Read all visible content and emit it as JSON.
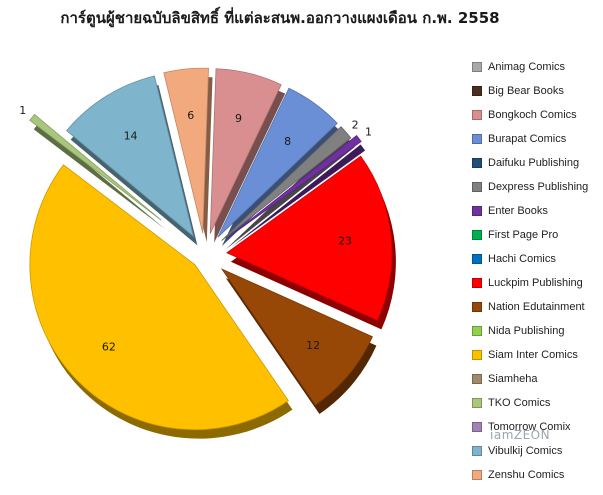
{
  "chart_data": {
    "type": "pie",
    "title": "การ์ตูนผู้ชายฉบับลิขสิทธิ์ ที่แต่ละสนพ.ออกวางแผงเดือน ก.พ. 2558",
    "categories": [
      "Animag Comics",
      "Big Bear Books",
      "Bongkoch Comics",
      "Burapat Comics",
      "Daifuku Publishing",
      "Dexpress Publishing",
      "Enter Books",
      "First Page Pro",
      "Hachi Comics",
      "Luckpim Publishing",
      "Nation Edutainment",
      "Nida Publishing",
      "Siam Inter Comics",
      "Siamheha",
      "TKO Comics",
      "Tomorrow Comix",
      "Vibulkij Comics",
      "Zenshu Comics"
    ],
    "values": [
      0,
      0,
      9,
      8,
      0,
      2,
      1,
      0,
      0,
      23,
      12,
      0,
      62,
      0,
      1,
      0,
      14,
      6
    ],
    "colors": [
      "#a9a9a9",
      "#4a2e1e",
      "#d98f8f",
      "#6b8fd6",
      "#1f4e79",
      "#808080",
      "#7030a0",
      "#00b050",
      "#0070c0",
      "#ff0000",
      "#974706",
      "#92d050",
      "#ffc000",
      "#a08a6a",
      "#a9c77b",
      "#9f82b6",
      "#7fb5cc",
      "#f2a97e"
    ],
    "slice_order": [
      2,
      3,
      5,
      6,
      9,
      10,
      12,
      14,
      16,
      17
    ],
    "legend_placement": "right",
    "grid": false
  },
  "watermark": "iamZEON"
}
